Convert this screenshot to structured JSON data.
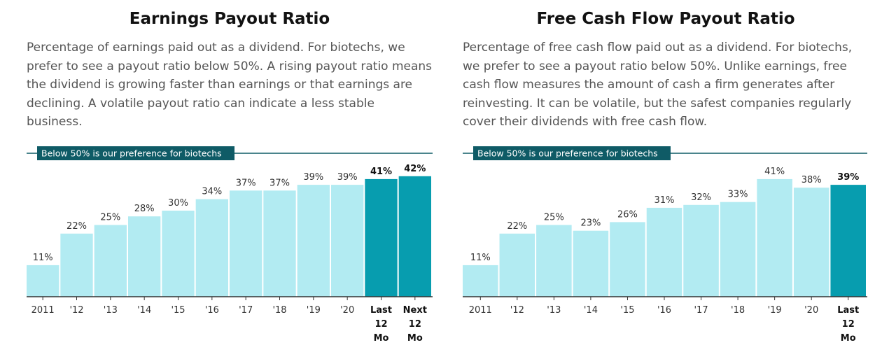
{
  "colors": {
    "bar_light": "#b2ebf2",
    "bar_dark": "#079daf",
    "ref_line": "#0f5b66",
    "axis": "#333333"
  },
  "charts": [
    {
      "title": "Earnings Payout Ratio",
      "description": "Percentage of earnings paid out as a dividend. For biotechs, we prefer to see a payout ratio below 50%. A rising payout ratio means the dividend is growing faster than earnings or that earnings are declining. A volatile payout ratio can indicate a less stable business.",
      "reference_label": "Below 50% is our preference for biotechs"
    },
    {
      "title": "Free Cash Flow Payout Ratio",
      "description": "Percentage of free cash flow paid out as a dividend. For biotechs, we prefer to see a payout ratio below 50%. Unlike earnings, free cash flow measures the amount of cash a firm generates after reinvesting. It can be volatile, but the safest companies regularly cover their dividends with free cash flow.",
      "reference_label": "Below 50% is our preference for biotechs"
    }
  ],
  "chart_data": [
    {
      "type": "bar",
      "title": "Earnings Payout Ratio",
      "categories": [
        "2011",
        "'12",
        "'13",
        "'14",
        "'15",
        "'16",
        "'17",
        "'18",
        "'19",
        "'20",
        "Last 12 Mo",
        "Next 12 Mo"
      ],
      "values": [
        11,
        22,
        25,
        28,
        30,
        34,
        37,
        37,
        39,
        39,
        41,
        42
      ],
      "value_labels": [
        "11%",
        "22%",
        "25%",
        "28%",
        "30%",
        "34%",
        "37%",
        "37%",
        "39%",
        "39%",
        "41%",
        "42%"
      ],
      "highlighted": [
        false,
        false,
        false,
        false,
        false,
        false,
        false,
        false,
        false,
        false,
        true,
        true
      ],
      "reference_value": 50,
      "ylim": [
        0,
        50
      ]
    },
    {
      "type": "bar",
      "title": "Free Cash Flow Payout Ratio",
      "categories": [
        "2011",
        "'12",
        "'13",
        "'14",
        "'15",
        "'16",
        "'17",
        "'18",
        "'19",
        "'20",
        "Last 12 Mo"
      ],
      "values": [
        11,
        22,
        25,
        23,
        26,
        31,
        32,
        33,
        41,
        38,
        39
      ],
      "value_labels": [
        "11%",
        "22%",
        "25%",
        "23%",
        "26%",
        "31%",
        "32%",
        "33%",
        "41%",
        "38%",
        "39%"
      ],
      "highlighted": [
        false,
        false,
        false,
        false,
        false,
        false,
        false,
        false,
        false,
        false,
        true
      ],
      "reference_value": 50,
      "ylim": [
        0,
        50
      ]
    }
  ]
}
